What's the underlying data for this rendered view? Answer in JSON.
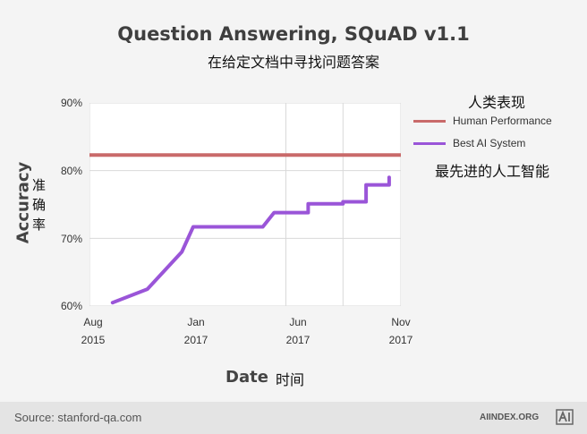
{
  "chart_data": {
    "type": "line",
    "title": "Question Answering, SQuAD v1.1",
    "subtitle": "在给定文档中寻找问题答案",
    "xlabel": "Date",
    "xlabel_cn": "时间",
    "ylabel": "Accuracy",
    "ylabel_cn": [
      "准",
      "确",
      "率"
    ],
    "ylim": [
      60,
      90
    ],
    "yticks": [
      "60%",
      "70%",
      "80%",
      "90%"
    ],
    "xticks": [
      {
        "line1": "Aug",
        "line2": "2015"
      },
      {
        "line1": "Jan",
        "line2": "2017"
      },
      {
        "line1": "Jun",
        "line2": "2017"
      },
      {
        "line1": "Nov",
        "line2": "2017"
      }
    ],
    "grid": true,
    "legend_placement": "right",
    "series": [
      {
        "name": "Human Performance",
        "name_cn": "人类表现",
        "color": "#c96a6a",
        "x": [
          "2015-08",
          "2017-11"
        ],
        "values": [
          82.3,
          82.3
        ]
      },
      {
        "name": "Best AI System",
        "name_cn": "最先进的人工智能",
        "color": "#9a55d8",
        "x": [
          "2015-10",
          "2016-01",
          "2016-04",
          "2016-05",
          "2016-11",
          "2016-12",
          "2017-03",
          "2017-03",
          "2017-06",
          "2017-06",
          "2017-08",
          "2017-08",
          "2017-09",
          "2017-10",
          "2017-10"
        ],
        "values": [
          60.5,
          62.5,
          68,
          71.7,
          71.7,
          73.8,
          73.8,
          75.1,
          75.1,
          75.4,
          75.4,
          77.9,
          77.9,
          77.9,
          79.0
        ]
      }
    ]
  },
  "footer": {
    "source": "Source: stanford-qa.com",
    "brand": "AIINDEX.ORG",
    "logo_text": "AI"
  },
  "colors": {
    "background": "#f4f4f4",
    "plot_background": "#ffffff",
    "grid": "#d9d9d9",
    "footer": "#e4e4e4"
  }
}
